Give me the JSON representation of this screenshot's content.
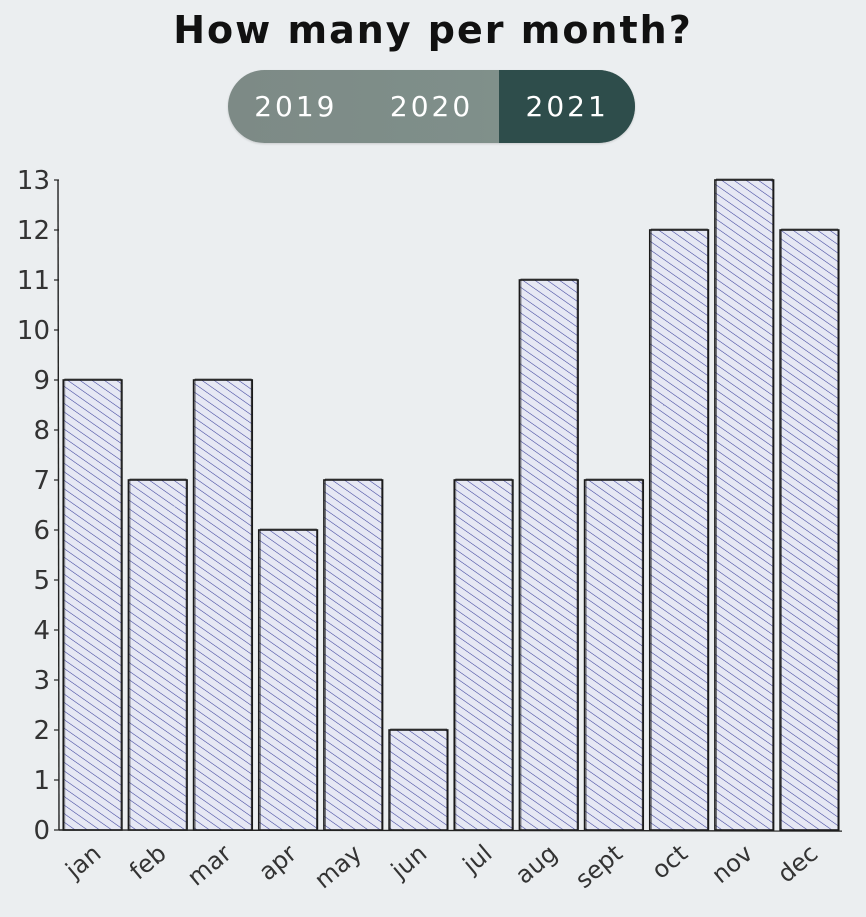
{
  "header": {
    "title": "How many per month?"
  },
  "year_toggle": {
    "options": [
      "2019",
      "2020",
      "2021"
    ],
    "selected": "2021"
  },
  "colors": {
    "bar_hatch": "#3a3f9a",
    "bar_fill": "#e6e8f4",
    "bar_stroke": "#1a1a1a",
    "toggle_bg": "#7f8f8a",
    "toggle_active": "#2e4d4b",
    "background": "#ebeef0"
  },
  "chart_data": {
    "type": "bar",
    "categories": [
      "jan",
      "feb",
      "mar",
      "apr",
      "may",
      "jun",
      "jul",
      "aug",
      "sept",
      "oct",
      "nov",
      "dec"
    ],
    "values": [
      9,
      7,
      9,
      6,
      7,
      2,
      7,
      11,
      7,
      12,
      13,
      12
    ],
    "yticks": [
      0,
      1,
      2,
      3,
      4,
      5,
      6,
      7,
      8,
      9,
      10,
      11,
      12,
      13
    ],
    "ylim": [
      0,
      13
    ],
    "grid": false,
    "legend": "none"
  }
}
